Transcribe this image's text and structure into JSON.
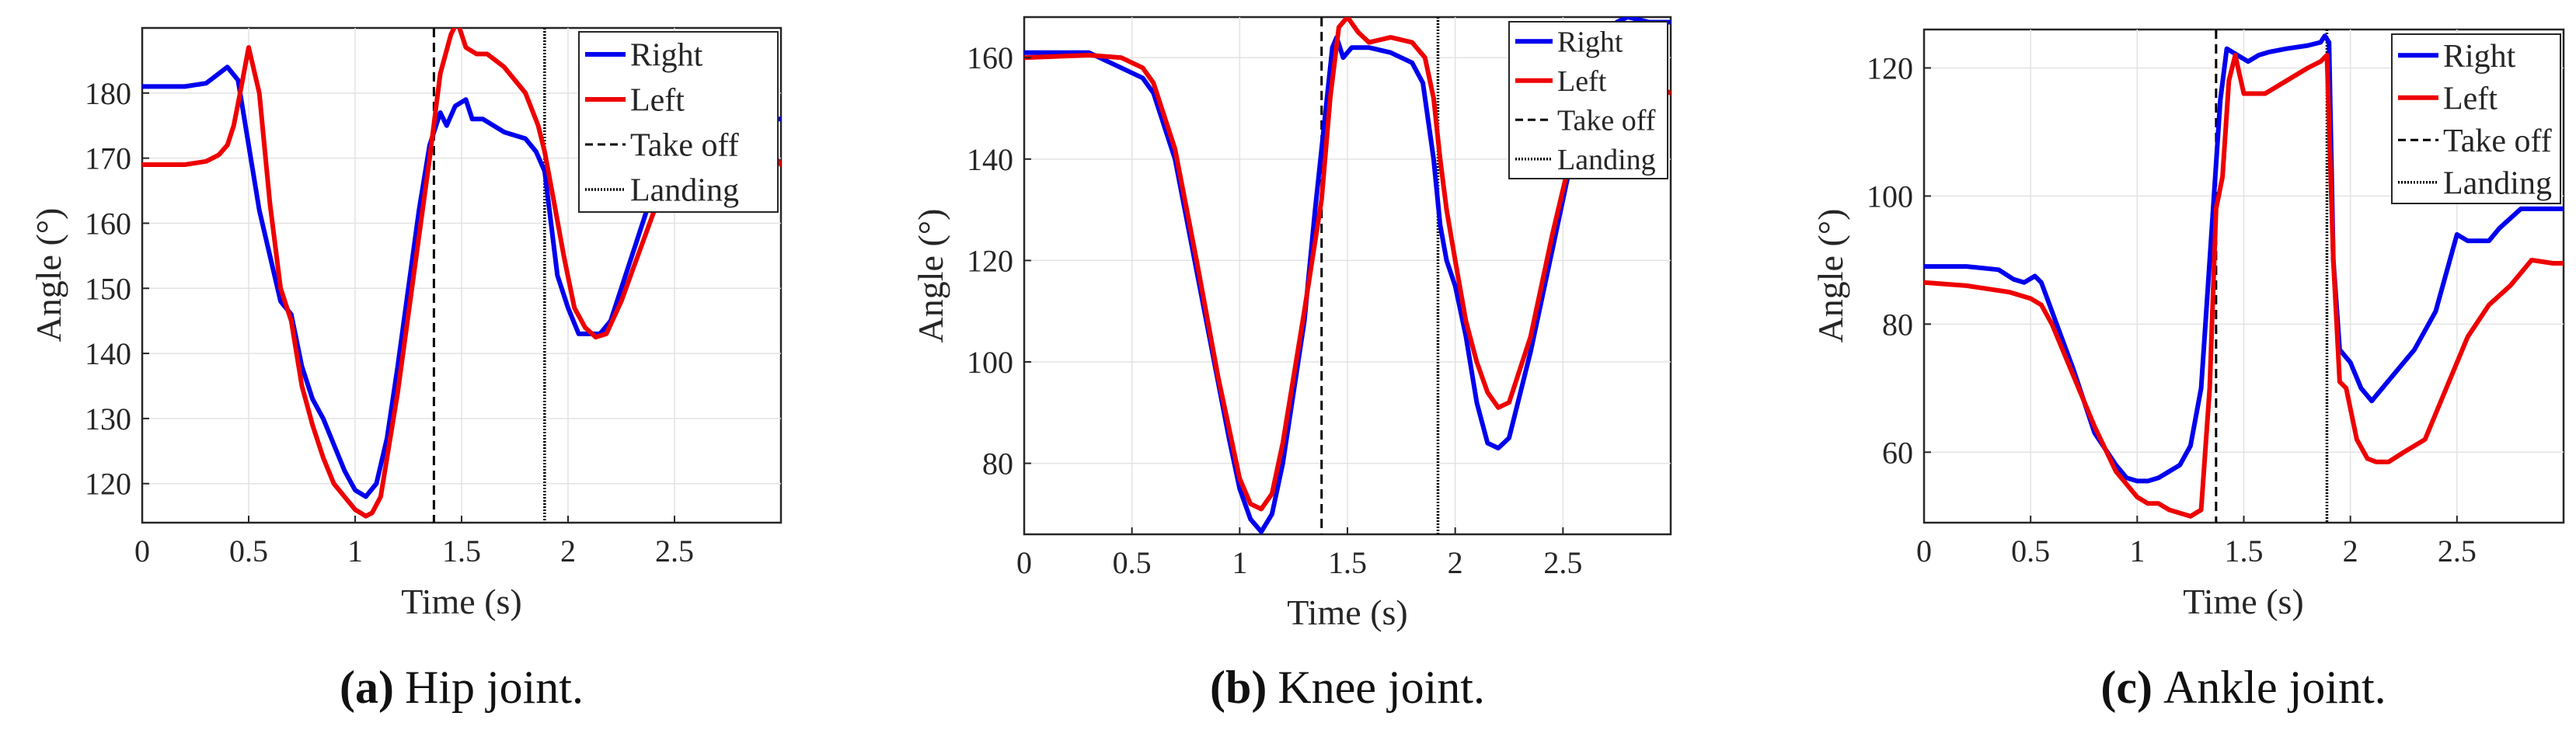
{
  "chart_data": [
    {
      "type": "line",
      "title": "",
      "caption": {
        "letter": "(a)",
        "text": "Hip joint."
      },
      "xlabel": "Time (s)",
      "ylabel": "Angle (°)",
      "xlim": [
        0,
        3.0
      ],
      "ylim": [
        114,
        190
      ],
      "xticks": [
        0,
        0.5,
        1,
        1.5,
        2,
        2.5
      ],
      "xtick_labels": [
        "0",
        "0.5",
        "1",
        "1.5",
        "2",
        "2.5"
      ],
      "yticks": [
        120,
        130,
        140,
        150,
        160,
        170,
        180
      ],
      "ytick_labels": [
        "120",
        "130",
        "140",
        "150",
        "160",
        "170",
        "180"
      ],
      "grid": true,
      "legend": {
        "position": "top-right",
        "entries": [
          "Right",
          "Left",
          "Take off",
          "Landing"
        ]
      },
      "vlines": [
        {
          "name": "Take off",
          "x": 1.37,
          "style": "dashed"
        },
        {
          "name": "Landing",
          "x": 1.89,
          "style": "dotted"
        }
      ],
      "series": [
        {
          "name": "Right",
          "color": "#0000ee",
          "x": [
            0,
            0.2,
            0.3,
            0.36,
            0.4,
            0.45,
            0.5,
            0.55,
            0.6,
            0.65,
            0.7,
            0.75,
            0.8,
            0.85,
            0.9,
            0.95,
            1.0,
            1.05,
            1.1,
            1.15,
            1.2,
            1.25,
            1.3,
            1.35,
            1.4,
            1.43,
            1.47,
            1.52,
            1.55,
            1.6,
            1.7,
            1.8,
            1.85,
            1.89,
            1.92,
            1.95,
            2.0,
            2.05,
            2.1,
            2.15,
            2.2,
            2.3,
            2.4,
            2.5,
            2.6,
            2.7,
            2.8,
            2.9,
            3.0
          ],
          "y": [
            181,
            181,
            181.5,
            183,
            184,
            182,
            172,
            162,
            155,
            148,
            146,
            138,
            133,
            130,
            126,
            122,
            119,
            118,
            120,
            127,
            138,
            150,
            162,
            172,
            177,
            175,
            178,
            179,
            176,
            176,
            174,
            173,
            171,
            168,
            160,
            152,
            147,
            143,
            143,
            143,
            145,
            155,
            165,
            172,
            176,
            176,
            176,
            176,
            176
          ]
        },
        {
          "name": "Left",
          "color": "#ee0000",
          "x": [
            0,
            0.2,
            0.3,
            0.36,
            0.4,
            0.43,
            0.46,
            0.5,
            0.55,
            0.6,
            0.65,
            0.7,
            0.75,
            0.8,
            0.85,
            0.9,
            0.95,
            1.0,
            1.05,
            1.08,
            1.12,
            1.15,
            1.2,
            1.25,
            1.3,
            1.35,
            1.4,
            1.45,
            1.48,
            1.52,
            1.57,
            1.62,
            1.7,
            1.8,
            1.86,
            1.89,
            1.93,
            1.98,
            2.03,
            2.08,
            2.13,
            2.18,
            2.25,
            2.35,
            2.45,
            2.55,
            2.65,
            2.75,
            2.85,
            2.95,
            3.0
          ],
          "y": [
            169,
            169,
            169.5,
            170.5,
            172,
            175,
            180,
            187,
            180,
            163,
            150,
            145,
            135,
            129,
            124,
            120,
            118,
            116,
            115,
            115.5,
            118,
            124,
            134,
            146,
            158,
            170,
            183,
            189,
            191,
            187,
            186,
            186,
            184,
            180,
            175,
            171,
            164,
            155,
            147,
            144,
            142.5,
            143,
            148,
            157,
            166,
            173,
            177,
            176,
            174,
            171,
            169
          ]
        }
      ]
    },
    {
      "type": "line",
      "title": "",
      "caption": {
        "letter": "(b)",
        "text": "Knee joint."
      },
      "xlabel": "Time (s)",
      "ylabel": "Angle (°)",
      "xlim": [
        0,
        3.0
      ],
      "ylim": [
        66,
        168
      ],
      "xticks": [
        0,
        0.5,
        1,
        1.5,
        2,
        2.5
      ],
      "xtick_labels": [
        "0",
        "0.5",
        "1",
        "1.5",
        "2",
        "2.5"
      ],
      "yticks": [
        80,
        100,
        120,
        140,
        160
      ],
      "ytick_labels": [
        "80",
        "100",
        "120",
        "140",
        "160"
      ],
      "grid": true,
      "legend": {
        "position": "top-right",
        "entries": [
          "Right",
          "Left",
          "Take off",
          "Landing"
        ]
      },
      "vlines": [
        {
          "name": "Take off",
          "x": 1.38,
          "style": "dashed"
        },
        {
          "name": "Landing",
          "x": 1.92,
          "style": "dotted"
        }
      ],
      "series": [
        {
          "name": "Right",
          "color": "#0000ee",
          "x": [
            0,
            0.3,
            0.45,
            0.55,
            0.6,
            0.7,
            0.8,
            0.9,
            0.95,
            1.0,
            1.05,
            1.1,
            1.15,
            1.2,
            1.3,
            1.35,
            1.4,
            1.43,
            1.45,
            1.48,
            1.52,
            1.6,
            1.7,
            1.8,
            1.85,
            1.9,
            1.93,
            1.96,
            2.0,
            2.05,
            2.1,
            2.15,
            2.2,
            2.25,
            2.35,
            2.45,
            2.55,
            2.65,
            2.75,
            2.8,
            2.9,
            3.0
          ],
          "y": [
            161,
            161,
            158,
            156,
            153,
            140,
            118,
            96,
            85,
            75,
            69,
            66.5,
            70,
            80,
            108,
            130,
            150,
            162,
            164,
            160,
            162,
            162,
            161,
            159,
            155,
            140,
            127,
            120,
            115,
            105,
            92,
            84,
            83,
            85,
            102,
            122,
            142,
            160,
            167,
            168,
            167,
            167
          ]
        },
        {
          "name": "Left",
          "color": "#ee0000",
          "x": [
            0,
            0.3,
            0.45,
            0.55,
            0.6,
            0.7,
            0.8,
            0.9,
            0.95,
            1.0,
            1.05,
            1.1,
            1.15,
            1.2,
            1.3,
            1.38,
            1.42,
            1.46,
            1.5,
            1.55,
            1.6,
            1.7,
            1.8,
            1.86,
            1.9,
            1.93,
            1.96,
            2.0,
            2.05,
            2.1,
            2.15,
            2.2,
            2.25,
            2.35,
            2.45,
            2.55,
            2.65,
            2.75,
            2.85,
            2.95,
            3.0
          ],
          "y": [
            160,
            160.5,
            160,
            158,
            155,
            142,
            120,
            97,
            87,
            77,
            72,
            71,
            74,
            84,
            110,
            132,
            152,
            166,
            168,
            165,
            163,
            164,
            163,
            160,
            152,
            140,
            130,
            120,
            108,
            100,
            94,
            91,
            92,
            105,
            125,
            143,
            155,
            160,
            157,
            154,
            153
          ]
        }
      ]
    },
    {
      "type": "line",
      "title": "",
      "caption": {
        "letter": "(c)",
        "text": "Ankle joint."
      },
      "xlabel": "Time (s)",
      "ylabel": "Angle (°)",
      "xlim": [
        0,
        3.0
      ],
      "ylim": [
        49,
        126
      ],
      "xticks": [
        0,
        0.5,
        1,
        1.5,
        2,
        2.5
      ],
      "xtick_labels": [
        "0",
        "0.5",
        "1",
        "1.5",
        "2",
        "2.5"
      ],
      "yticks": [
        60,
        80,
        100,
        120
      ],
      "ytick_labels": [
        "60",
        "80",
        "100",
        "120"
      ],
      "grid": true,
      "legend": {
        "position": "top-right",
        "entries": [
          "Right",
          "Left",
          "Take off",
          "Landing"
        ]
      },
      "vlines": [
        {
          "name": "Take off",
          "x": 1.37,
          "style": "dashed"
        },
        {
          "name": "Landing",
          "x": 1.89,
          "style": "dotted"
        }
      ],
      "series": [
        {
          "name": "Right",
          "color": "#0000ee",
          "x": [
            0,
            0.2,
            0.35,
            0.42,
            0.47,
            0.52,
            0.55,
            0.6,
            0.7,
            0.8,
            0.9,
            0.95,
            1.0,
            1.05,
            1.1,
            1.15,
            1.2,
            1.25,
            1.3,
            1.33,
            1.36,
            1.39,
            1.42,
            1.47,
            1.52,
            1.57,
            1.62,
            1.7,
            1.8,
            1.86,
            1.88,
            1.9,
            1.92,
            1.95,
            2.0,
            2.05,
            2.1,
            2.15,
            2.2,
            2.3,
            2.4,
            2.5,
            2.55,
            2.6,
            2.65,
            2.7,
            2.8,
            2.9,
            3.0
          ],
          "y": [
            89,
            89,
            88.5,
            87,
            86.5,
            87.5,
            86.5,
            82,
            73,
            63,
            58,
            56,
            55.5,
            55.5,
            56,
            57,
            58,
            61,
            70,
            85,
            100,
            115,
            123,
            122,
            121,
            122,
            122.5,
            123,
            123.5,
            124,
            125,
            124,
            90,
            76,
            74,
            70,
            68,
            70,
            72,
            76,
            82,
            94,
            93,
            93,
            93,
            95,
            98,
            98,
            98
          ]
        },
        {
          "name": "Left",
          "color": "#ee0000",
          "x": [
            0,
            0.2,
            0.4,
            0.5,
            0.55,
            0.6,
            0.7,
            0.8,
            0.9,
            1.0,
            1.05,
            1.1,
            1.15,
            1.2,
            1.25,
            1.3,
            1.34,
            1.37,
            1.4,
            1.43,
            1.46,
            1.5,
            1.55,
            1.6,
            1.7,
            1.8,
            1.86,
            1.89,
            1.92,
            1.95,
            1.98,
            2.03,
            2.08,
            2.12,
            2.18,
            2.25,
            2.35,
            2.45,
            2.55,
            2.65,
            2.75,
            2.85,
            2.95,
            3.0
          ],
          "y": [
            86.5,
            86,
            85,
            84,
            83,
            80,
            72,
            64,
            57,
            53,
            52,
            52,
            51,
            50.5,
            50,
            51,
            70,
            98,
            103,
            118,
            122,
            116,
            116,
            116,
            118,
            120,
            121,
            122,
            90,
            71,
            70,
            62,
            59,
            58.5,
            58.5,
            60,
            62,
            70,
            78,
            83,
            86,
            90,
            89.5,
            89.5
          ]
        }
      ]
    }
  ]
}
